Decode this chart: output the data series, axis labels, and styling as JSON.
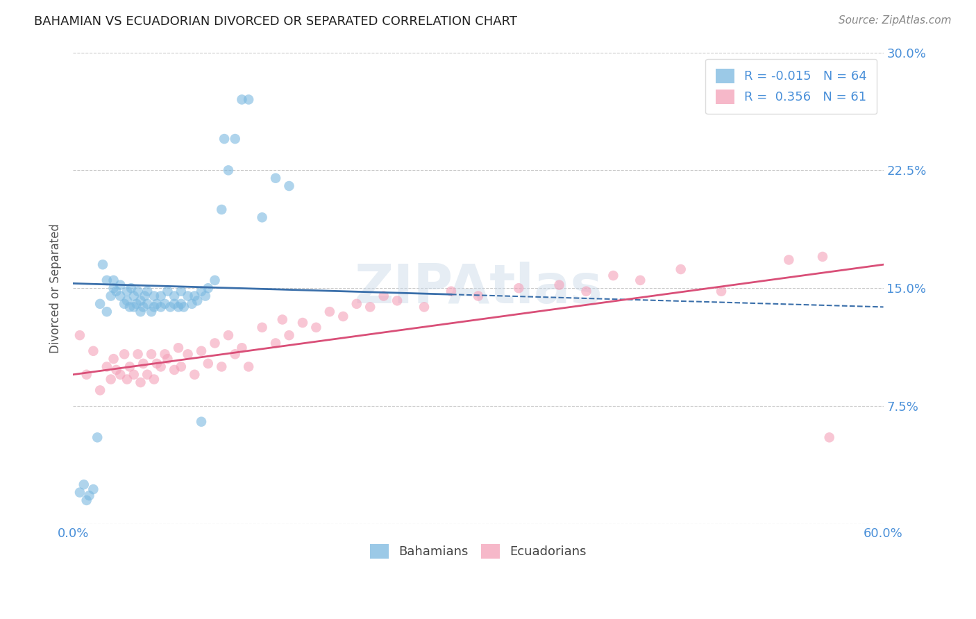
{
  "title": "BAHAMIAN VS ECUADORIAN DIVORCED OR SEPARATED CORRELATION CHART",
  "source": "Source: ZipAtlas.com",
  "ylabel": "Divorced or Separated",
  "watermark": "ZIPAtlas",
  "xlim": [
    0.0,
    0.6
  ],
  "ylim": [
    0.0,
    0.3
  ],
  "xticks": [
    0.0,
    0.1,
    0.2,
    0.3,
    0.4,
    0.5,
    0.6
  ],
  "xticklabels": [
    "0.0%",
    "",
    "",
    "",
    "",
    "",
    "60.0%"
  ],
  "yticks": [
    0.0,
    0.075,
    0.15,
    0.225,
    0.3
  ],
  "yticklabels": [
    "",
    "7.5%",
    "15.0%",
    "22.5%",
    "30.0%"
  ],
  "grid_color": "#c8c8c8",
  "background_color": "#ffffff",
  "blue_color": "#7ab8e0",
  "pink_color": "#f4a0b8",
  "blue_line_color": "#3a6faa",
  "pink_line_color": "#d94f78",
  "R_blue": -0.015,
  "N_blue": 64,
  "R_pink": 0.356,
  "N_pink": 61,
  "legend_label_blue": "Bahamians",
  "legend_label_pink": "Ecuadorians",
  "blue_scatter_x": [
    0.005,
    0.008,
    0.01,
    0.012,
    0.015,
    0.02,
    0.022,
    0.025,
    0.025,
    0.028,
    0.03,
    0.03,
    0.032,
    0.035,
    0.035,
    0.038,
    0.04,
    0.04,
    0.042,
    0.043,
    0.045,
    0.045,
    0.047,
    0.048,
    0.05,
    0.05,
    0.052,
    0.053,
    0.055,
    0.055,
    0.058,
    0.06,
    0.06,
    0.062,
    0.065,
    0.065,
    0.068,
    0.07,
    0.072,
    0.075,
    0.075,
    0.078,
    0.08,
    0.08,
    0.082,
    0.085,
    0.088,
    0.09,
    0.092,
    0.095,
    0.098,
    0.1,
    0.105,
    0.11,
    0.112,
    0.115,
    0.12,
    0.125,
    0.13,
    0.14,
    0.15,
    0.16,
    0.018,
    0.095
  ],
  "blue_scatter_y": [
    0.02,
    0.025,
    0.015,
    0.018,
    0.022,
    0.14,
    0.165,
    0.135,
    0.155,
    0.145,
    0.15,
    0.155,
    0.148,
    0.145,
    0.152,
    0.14,
    0.142,
    0.148,
    0.138,
    0.15,
    0.138,
    0.145,
    0.14,
    0.148,
    0.135,
    0.142,
    0.138,
    0.145,
    0.14,
    0.148,
    0.135,
    0.138,
    0.145,
    0.14,
    0.145,
    0.138,
    0.14,
    0.148,
    0.138,
    0.14,
    0.145,
    0.138,
    0.14,
    0.148,
    0.138,
    0.145,
    0.14,
    0.145,
    0.142,
    0.148,
    0.145,
    0.15,
    0.155,
    0.2,
    0.245,
    0.225,
    0.245,
    0.27,
    0.27,
    0.195,
    0.22,
    0.215,
    0.055,
    0.065
  ],
  "pink_scatter_x": [
    0.005,
    0.01,
    0.015,
    0.02,
    0.025,
    0.028,
    0.03,
    0.032,
    0.035,
    0.038,
    0.04,
    0.042,
    0.045,
    0.048,
    0.05,
    0.052,
    0.055,
    0.058,
    0.06,
    0.062,
    0.065,
    0.068,
    0.07,
    0.075,
    0.078,
    0.08,
    0.085,
    0.09,
    0.095,
    0.1,
    0.105,
    0.11,
    0.115,
    0.12,
    0.125,
    0.13,
    0.14,
    0.15,
    0.155,
    0.16,
    0.17,
    0.18,
    0.19,
    0.2,
    0.21,
    0.22,
    0.23,
    0.24,
    0.26,
    0.28,
    0.3,
    0.33,
    0.36,
    0.38,
    0.4,
    0.42,
    0.45,
    0.48,
    0.53,
    0.555,
    0.56
  ],
  "pink_scatter_y": [
    0.12,
    0.095,
    0.11,
    0.085,
    0.1,
    0.092,
    0.105,
    0.098,
    0.095,
    0.108,
    0.092,
    0.1,
    0.095,
    0.108,
    0.09,
    0.102,
    0.095,
    0.108,
    0.092,
    0.102,
    0.1,
    0.108,
    0.105,
    0.098,
    0.112,
    0.1,
    0.108,
    0.095,
    0.11,
    0.102,
    0.115,
    0.1,
    0.12,
    0.108,
    0.112,
    0.1,
    0.125,
    0.115,
    0.13,
    0.12,
    0.128,
    0.125,
    0.135,
    0.132,
    0.14,
    0.138,
    0.145,
    0.142,
    0.138,
    0.148,
    0.145,
    0.15,
    0.152,
    0.148,
    0.158,
    0.155,
    0.162,
    0.148,
    0.168,
    0.17,
    0.055
  ]
}
